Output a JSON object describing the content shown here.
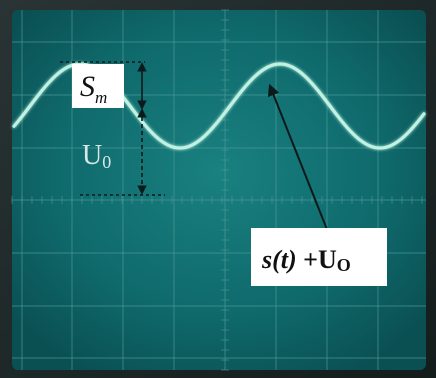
{
  "annotations": {
    "amplitude_letter": "S",
    "amplitude_subscript": "m",
    "offset_label": "U",
    "offset_subscript": "0",
    "signal_label_func": "s(t)",
    "signal_label_rest": " +U",
    "signal_label_subscript": "O"
  },
  "colors": {
    "screen": "#0f6a6c",
    "grid": "#4f9a98",
    "trace": "#bff2e2",
    "frame": "#1e2a2a"
  }
}
